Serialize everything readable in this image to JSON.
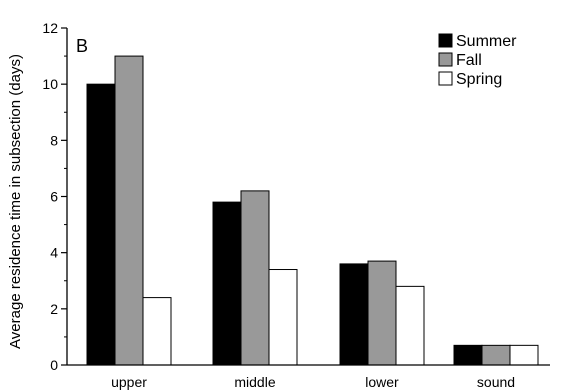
{
  "chart_data": {
    "type": "bar",
    "panel_label": "B",
    "categories": [
      "upper",
      "middle",
      "lower",
      "sound"
    ],
    "series": [
      {
        "name": "Summer",
        "values": [
          10.0,
          5.8,
          3.6,
          0.7
        ],
        "color": "#000000"
      },
      {
        "name": "Fall",
        "values": [
          11.0,
          6.2,
          3.7,
          0.7
        ],
        "color": "#999999"
      },
      {
        "name": "Spring",
        "values": [
          2.4,
          3.4,
          2.8,
          0.7
        ],
        "color": "#ffffff"
      }
    ],
    "ylabel": "Average residence time in subsection (days)",
    "xlabel": "",
    "ylim": [
      0,
      12
    ],
    "yticks": [
      0,
      2,
      4,
      6,
      8,
      10,
      12
    ],
    "legend_position": "top-right",
    "grid": false
  }
}
